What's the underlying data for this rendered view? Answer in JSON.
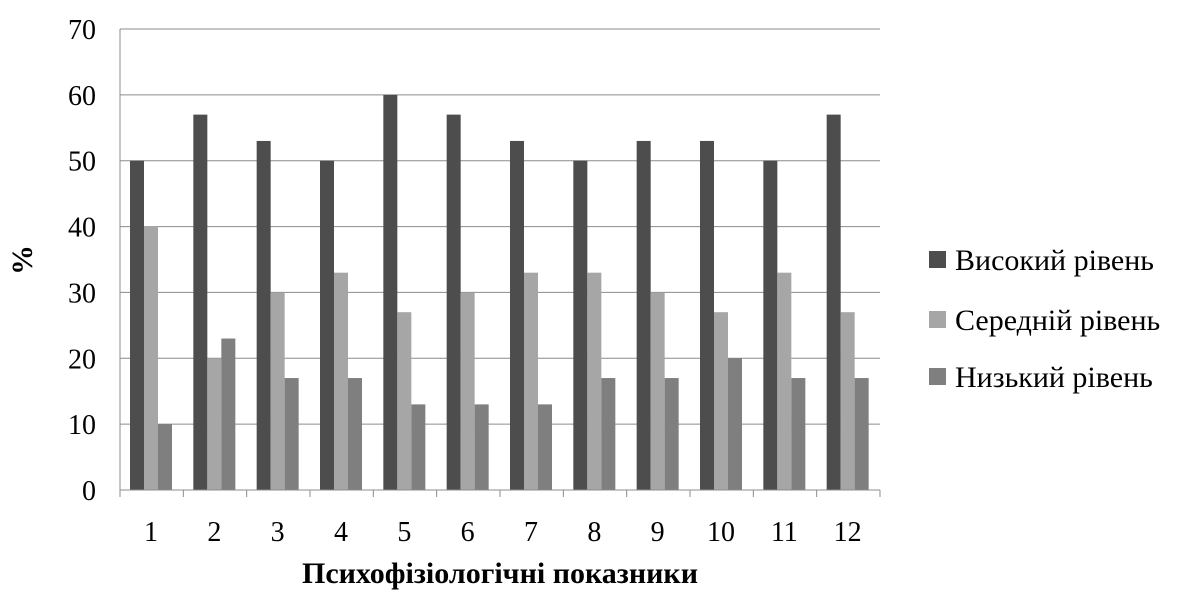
{
  "chart_data": {
    "type": "bar",
    "categories": [
      "1",
      "2",
      "3",
      "4",
      "5",
      "6",
      "7",
      "8",
      "9",
      "10",
      "11",
      "12"
    ],
    "series": [
      {
        "name": "Високий рівень",
        "color": "#4d4d4d",
        "values": [
          50,
          57,
          53,
          50,
          60,
          57,
          53,
          50,
          53,
          53,
          50,
          57
        ]
      },
      {
        "name": "Середній рівень",
        "color": "#a6a6a6",
        "values": [
          40,
          20,
          30,
          33,
          27,
          30,
          33,
          33,
          30,
          27,
          33,
          27
        ]
      },
      {
        "name": "Низький рівень",
        "color": "#7f7f7f",
        "values": [
          10,
          23,
          17,
          17,
          13,
          13,
          13,
          17,
          17,
          20,
          17,
          17
        ]
      }
    ],
    "title": "",
    "xlabel": "Психофізіологічні показники",
    "ylabel": "%",
    "ylim": [
      0,
      70
    ],
    "yticks": [
      0,
      10,
      20,
      30,
      40,
      50,
      60,
      70
    ],
    "grid": true,
    "legend": "right"
  }
}
